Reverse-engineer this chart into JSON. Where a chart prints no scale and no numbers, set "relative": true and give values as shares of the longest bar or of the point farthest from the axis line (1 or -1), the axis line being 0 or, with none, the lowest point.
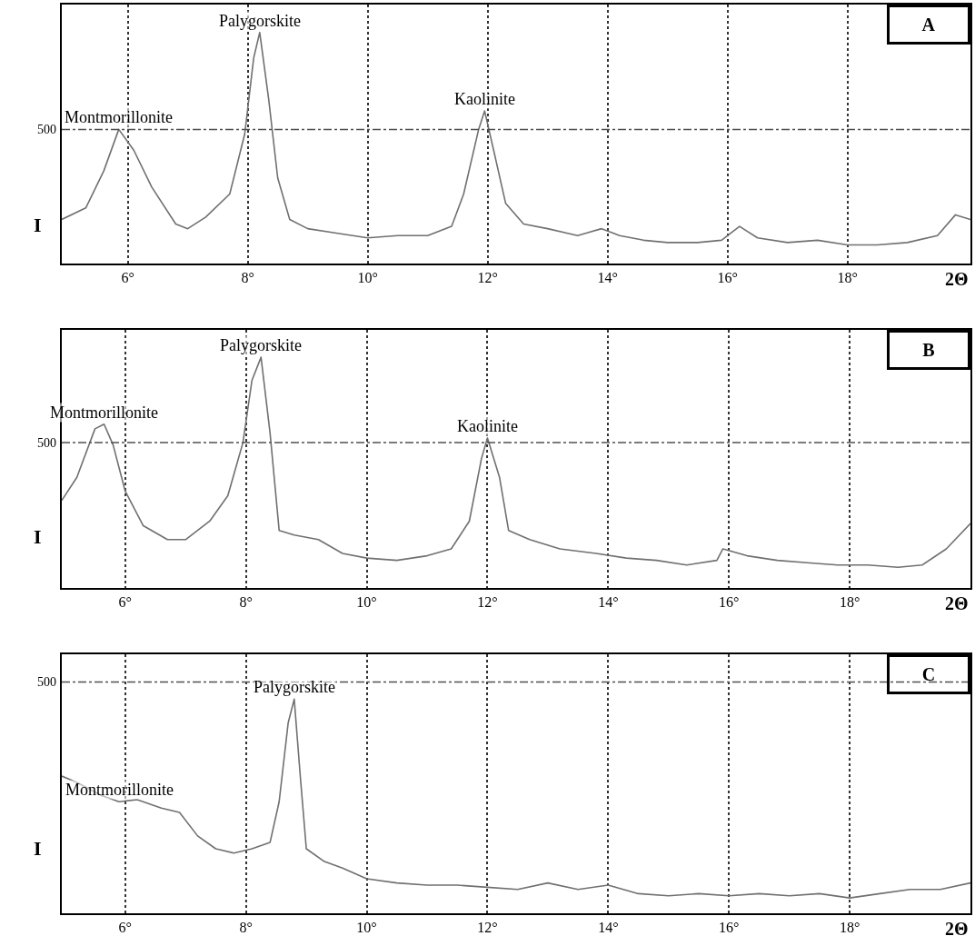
{
  "chart_data": [
    {
      "type": "line",
      "title": "A",
      "xlabel": "2Θ",
      "ylabel": "I",
      "relative": true,
      "grid": "x",
      "xlim": [
        4.9,
        20.05
      ],
      "xticks": [
        {
          "value": 6,
          "label": "6°"
        },
        {
          "value": 8,
          "label": "8°"
        },
        {
          "value": 10,
          "label": "10°"
        },
        {
          "value": 12,
          "label": "12°"
        },
        {
          "value": 14,
          "label": "14°"
        },
        {
          "value": 16,
          "label": "16°"
        },
        {
          "value": 18,
          "label": "18°"
        }
      ],
      "x": [
        4.9,
        5.3,
        5.6,
        5.85,
        6.1,
        6.4,
        6.8,
        7.0,
        7.3,
        7.7,
        7.95,
        8.1,
        8.2,
        8.35,
        8.5,
        8.7,
        9.0,
        9.5,
        10.0,
        10.5,
        11.0,
        11.4,
        11.6,
        11.85,
        11.95,
        12.1,
        12.3,
        12.6,
        13.0,
        13.5,
        13.9,
        14.2,
        14.6,
        15.0,
        15.5,
        15.9,
        16.2,
        16.5,
        17.0,
        17.5,
        18.0,
        18.5,
        19.0,
        19.5,
        19.8,
        20.05
      ],
      "series": [
        {
          "color": "#707070",
          "values": [
            0.19,
            0.24,
            0.4,
            0.58,
            0.49,
            0.33,
            0.17,
            0.15,
            0.2,
            0.3,
            0.56,
            0.89,
            1,
            0.71,
            0.37,
            0.19,
            0.15,
            0.13,
            0.11,
            0.12,
            0.12,
            0.16,
            0.3,
            0.58,
            0.66,
            0.49,
            0.26,
            0.17,
            0.15,
            0.12,
            0.15,
            0.12,
            0.1,
            0.09,
            0.09,
            0.1,
            0.16,
            0.11,
            0.09,
            0.1,
            0.08,
            0.08,
            0.09,
            0.12,
            0.21,
            0.19
          ]
        }
      ],
      "ref_lines": [
        {
          "axis": "y",
          "value": 0.58,
          "line_style": "dashed",
          "color": "#505050"
        }
      ],
      "annotations": [
        "500",
        {
          "text": "Montmorillonite",
          "x": 5.85,
          "y": 0.58
        },
        {
          "text": "Palygorskite",
          "x": 8.2,
          "y": 1
        },
        {
          "text": "Kaolinite",
          "x": 11.95,
          "y": 0.66
        }
      ]
    },
    {
      "type": "line",
      "title": "B",
      "xlabel": "2Θ",
      "ylabel": "I",
      "relative": true,
      "grid": "x",
      "xlim": [
        4.95,
        20.0
      ],
      "xticks": [
        {
          "value": 6,
          "label": "6°"
        },
        {
          "value": 8,
          "label": "8°"
        },
        {
          "value": 10,
          "label": "10°"
        },
        {
          "value": 12,
          "label": "12°"
        },
        {
          "value": 14,
          "label": "14°"
        },
        {
          "value": 16,
          "label": "16°"
        },
        {
          "value": 18,
          "label": "18°"
        }
      ],
      "x": [
        4.95,
        5.2,
        5.5,
        5.65,
        5.8,
        6.0,
        6.3,
        6.7,
        7.0,
        7.4,
        7.7,
        7.95,
        8.1,
        8.25,
        8.4,
        8.55,
        8.8,
        9.2,
        9.6,
        10.0,
        10.5,
        11.0,
        11.4,
        11.7,
        11.9,
        12.0,
        12.2,
        12.35,
        12.7,
        13.2,
        13.8,
        14.3,
        14.8,
        15.3,
        15.8,
        15.9,
        16.3,
        16.8,
        17.3,
        17.8,
        18.3,
        18.8,
        19.2,
        19.6,
        20.0
      ],
      "series": [
        {
          "color": "#707070",
          "values": [
            0.38,
            0.48,
            0.69,
            0.71,
            0.62,
            0.42,
            0.27,
            0.21,
            0.21,
            0.29,
            0.4,
            0.63,
            0.9,
            1,
            0.67,
            0.25,
            0.23,
            0.21,
            0.15,
            0.13,
            0.12,
            0.14,
            0.17,
            0.29,
            0.56,
            0.65,
            0.48,
            0.25,
            0.21,
            0.17,
            0.15,
            0.13,
            0.12,
            0.1,
            0.12,
            0.17,
            0.14,
            0.12,
            0.11,
            0.1,
            0.1,
            0.09,
            0.1,
            0.17,
            0.28
          ]
        }
      ],
      "ref_lines": [
        {
          "axis": "y",
          "value": 0.63,
          "line_style": "dashed",
          "color": "#505050"
        }
      ],
      "annotations": [
        "500",
        {
          "text": "Montmorillonite",
          "x": 5.65,
          "y": 0.71
        },
        {
          "text": "Palygorskite",
          "x": 8.25,
          "y": 1
        },
        {
          "text": "Kaolinite",
          "x": 12.0,
          "y": 0.65
        }
      ]
    },
    {
      "type": "line",
      "title": "C",
      "xlabel": "2Θ",
      "ylabel": "I",
      "relative": true,
      "grid": "x",
      "xlim": [
        4.95,
        20.0
      ],
      "xticks": [
        {
          "value": 6,
          "label": "6°"
        },
        {
          "value": 8,
          "label": "8°"
        },
        {
          "value": 10,
          "label": "10°"
        },
        {
          "value": 12,
          "label": "12°"
        },
        {
          "value": 14,
          "label": "14°"
        },
        {
          "value": 16,
          "label": "16°"
        },
        {
          "value": 18,
          "label": "18°"
        }
      ],
      "x": [
        4.95,
        5.2,
        5.6,
        5.9,
        6.2,
        6.6,
        6.9,
        7.2,
        7.5,
        7.8,
        8.1,
        8.4,
        8.55,
        8.7,
        8.8,
        8.9,
        9.0,
        9.3,
        9.6,
        10.0,
        10.5,
        11.0,
        11.5,
        12.0,
        12.5,
        13.0,
        13.5,
        14.0,
        14.5,
        15.0,
        15.5,
        16.0,
        16.5,
        17.0,
        17.5,
        18.0,
        18.5,
        19.0,
        19.5,
        20.0
      ],
      "series": [
        {
          "color": "#707070",
          "values": [
            0.64,
            0.61,
            0.55,
            0.52,
            0.53,
            0.49,
            0.47,
            0.36,
            0.3,
            0.28,
            0.3,
            0.33,
            0.52,
            0.89,
            1,
            0.64,
            0.3,
            0.24,
            0.21,
            0.16,
            0.14,
            0.13,
            0.13,
            0.12,
            0.11,
            0.14,
            0.11,
            0.13,
            0.09,
            0.08,
            0.09,
            0.08,
            0.09,
            0.08,
            0.09,
            0.07,
            0.09,
            0.11,
            0.11,
            0.14
          ]
        }
      ],
      "ref_lines": [
        {
          "axis": "y",
          "value": 1.08,
          "line_style": "dashed",
          "color": "#505050"
        }
      ],
      "annotations": [
        "500",
        {
          "text": "Montmorillonite",
          "x": 5.9,
          "y": 0.52
        },
        {
          "text": "Palygorskite",
          "x": 8.8,
          "y": 1
        }
      ]
    }
  ]
}
